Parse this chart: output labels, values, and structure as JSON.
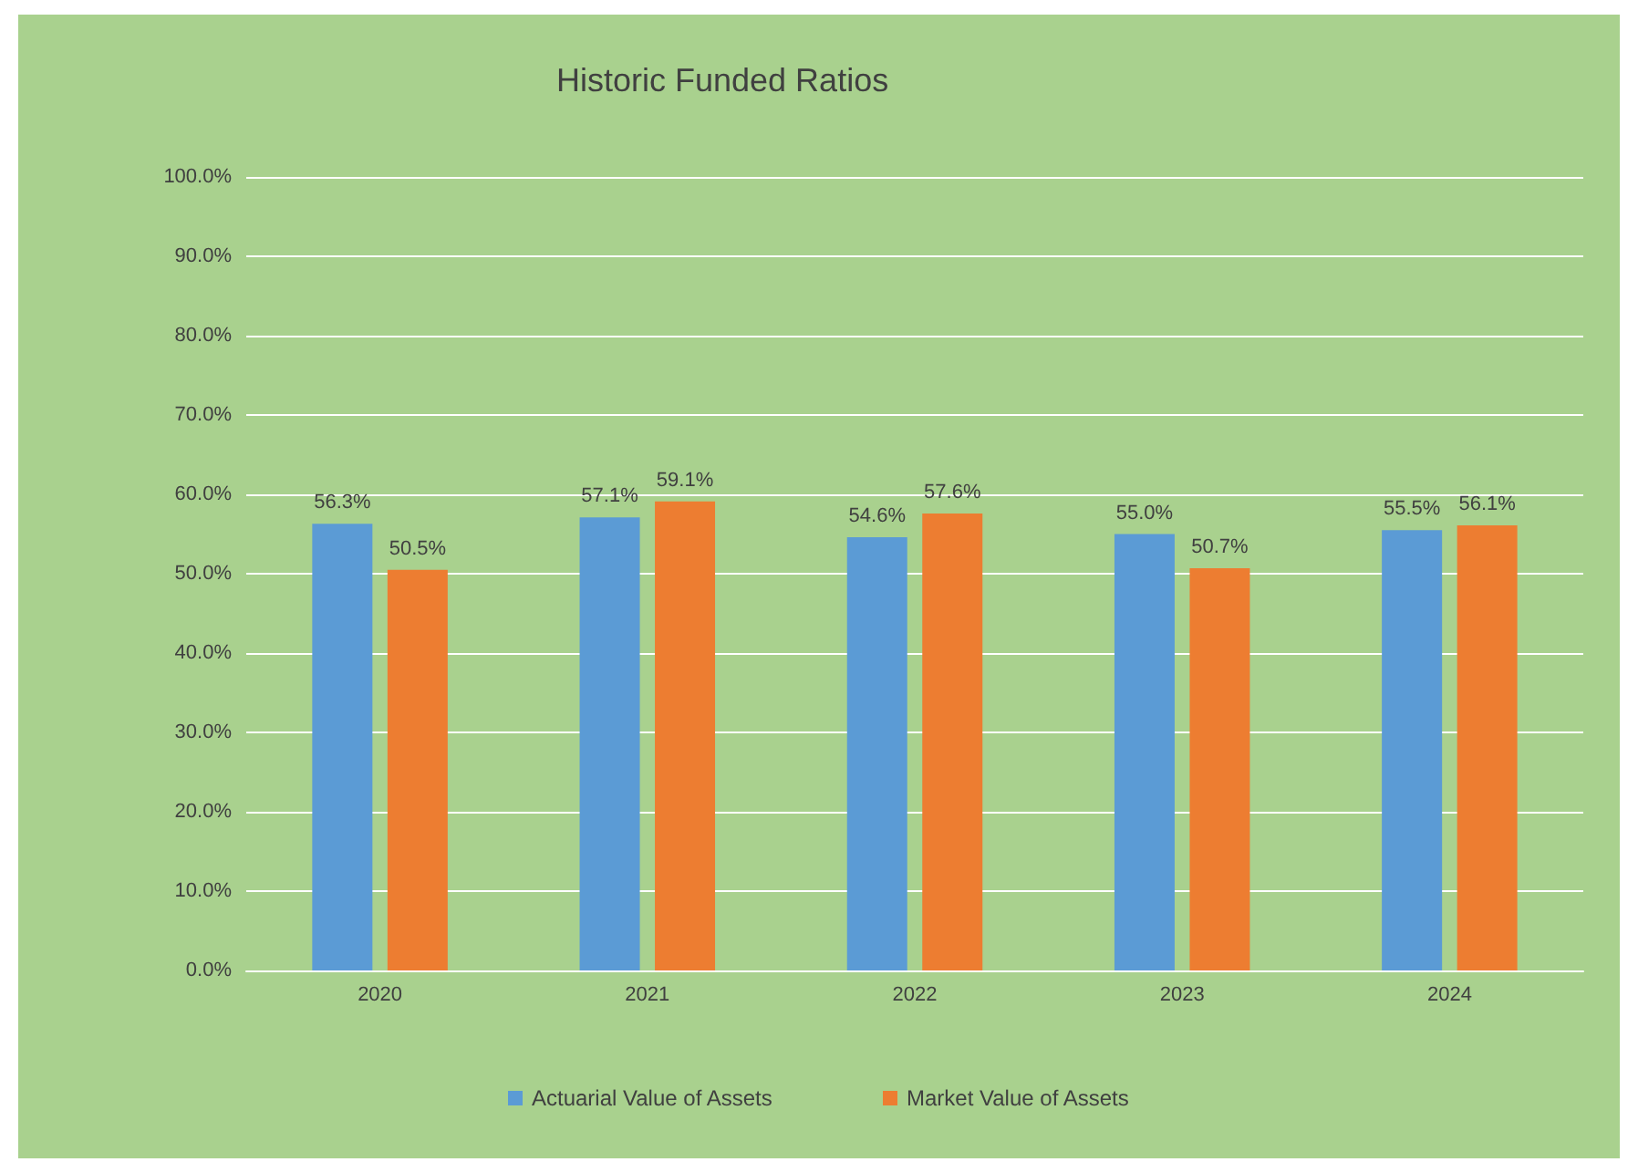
{
  "chart_data": {
    "type": "bar",
    "title": "Historic Funded Ratios",
    "categories": [
      "2020",
      "2021",
      "2022",
      "2023",
      "2024"
    ],
    "series": [
      {
        "name": "Actuarial Value of Assets",
        "color": "#5b9bd5",
        "values": [
          56.3,
          57.1,
          54.6,
          55.0,
          55.5
        ],
        "value_labels": [
          "56.3%",
          "57.1%",
          "54.6%",
          "55.0%",
          "55.5%"
        ]
      },
      {
        "name": "Market Value of Assets",
        "color": "#ed7d31",
        "values": [
          50.5,
          59.1,
          57.6,
          50.7,
          56.1
        ],
        "value_labels": [
          "50.5%",
          "59.1%",
          "57.6%",
          "50.7%",
          "56.1%"
        ]
      }
    ],
    "ylim": [
      0,
      100
    ],
    "yticks": [
      {
        "value": 0,
        "label": "0.0%"
      },
      {
        "value": 10,
        "label": "10.0%"
      },
      {
        "value": 20,
        "label": "20.0%"
      },
      {
        "value": 30,
        "label": "30.0%"
      },
      {
        "value": 40,
        "label": "40.0%"
      },
      {
        "value": 50,
        "label": "50.0%"
      },
      {
        "value": 60,
        "label": "60.0%"
      },
      {
        "value": 70,
        "label": "70.0%"
      },
      {
        "value": 80,
        "label": "80.0%"
      },
      {
        "value": 90,
        "label": "90.0%"
      },
      {
        "value": 100,
        "label": "100.0%"
      }
    ],
    "grid": "y",
    "legend": "bottom"
  }
}
